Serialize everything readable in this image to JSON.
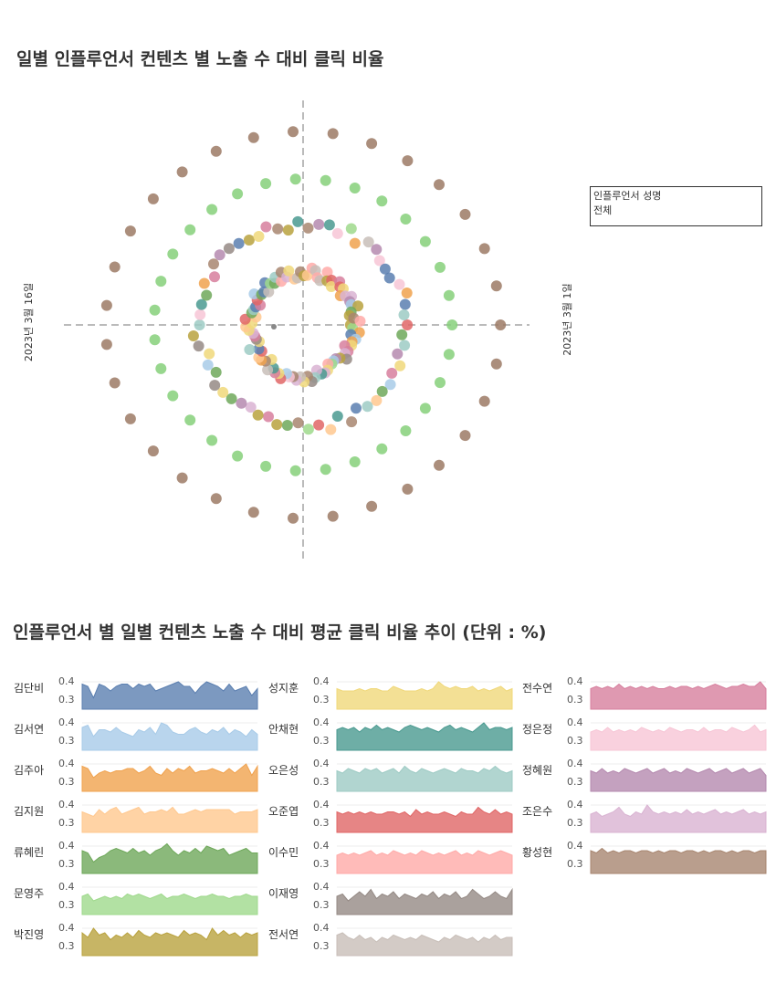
{
  "titles": {
    "radial": "일별 인플루언서 컨텐츠 별 노출 수 대비 클릭 비율",
    "trend": "인플루언서 별 일별 컨텐츠 노출 수 대비 평균 클릭 비율 추이 (단위 : %)"
  },
  "radial_labels": {
    "left": "2023년 3월 16일",
    "right": "2023년 3월 1일"
  },
  "filter": {
    "title": "인플루언서 성명",
    "value": "전체"
  },
  "chart_data": [
    {
      "type": "scatter",
      "title": "일별 인플루언서 컨텐츠 별 노출 수 대비 클릭 비율",
      "layout_kind": "radial",
      "axis_labels": [
        "2023년 3월 1일",
        "2023년 3월 16일"
      ],
      "rings": [
        {
          "label": "outer",
          "color": "#9c7a65",
          "count": 31
        },
        {
          "label": "second",
          "color": "#86d07a",
          "count": 31
        },
        {
          "label": "third",
          "color": "mixed",
          "count": 62
        },
        {
          "label": "inner",
          "color": "mixed",
          "count": 93
        }
      ]
    },
    {
      "type": "area",
      "title": "인플루언서 별 일별 컨텐츠 노출 수 대비 평균 클릭 비율 추이 (단위 : %)",
      "y_ticks": [
        "0.4",
        "0.3"
      ],
      "series": [
        {
          "name": "김단비",
          "color": "#5b7fb0",
          "values": [
            0.39,
            0.38,
            0.33,
            0.39,
            0.38,
            0.36,
            0.38,
            0.39,
            0.39,
            0.37,
            0.39,
            0.38,
            0.39,
            0.36,
            0.37,
            0.38,
            0.39,
            0.4,
            0.38,
            0.38,
            0.35,
            0.38,
            0.4,
            0.39,
            0.38,
            0.36,
            0.39,
            0.36,
            0.37,
            0.38,
            0.34,
            0.37
          ]
        },
        {
          "name": "김서연",
          "color": "#a8cbe8",
          "values": [
            0.38,
            0.39,
            0.34,
            0.37,
            0.37,
            0.36,
            0.38,
            0.36,
            0.35,
            0.34,
            0.37,
            0.36,
            0.38,
            0.35,
            0.4,
            0.39,
            0.36,
            0.35,
            0.35,
            0.37,
            0.38,
            0.36,
            0.35,
            0.37,
            0.36,
            0.38,
            0.35,
            0.37,
            0.36,
            0.34,
            0.37,
            0.35
          ]
        },
        {
          "name": "김주아",
          "color": "#f0a24e",
          "values": [
            0.39,
            0.38,
            0.34,
            0.36,
            0.37,
            0.36,
            0.37,
            0.37,
            0.38,
            0.38,
            0.36,
            0.37,
            0.39,
            0.36,
            0.35,
            0.38,
            0.36,
            0.38,
            0.37,
            0.39,
            0.36,
            0.37,
            0.37,
            0.38,
            0.37,
            0.36,
            0.38,
            0.36,
            0.38,
            0.4,
            0.35,
            0.39
          ]
        },
        {
          "name": "김지원",
          "color": "#ffc88f",
          "values": [
            0.37,
            0.36,
            0.35,
            0.38,
            0.36,
            0.38,
            0.39,
            0.36,
            0.37,
            0.38,
            0.39,
            0.36,
            0.37,
            0.37,
            0.38,
            0.37,
            0.39,
            0.36,
            0.36,
            0.37,
            0.38,
            0.37,
            0.38,
            0.38,
            0.38,
            0.38,
            0.38,
            0.36,
            0.37,
            0.37,
            0.37,
            0.38
          ]
        },
        {
          "name": "류혜린",
          "color": "#6ea85a",
          "values": [
            0.38,
            0.37,
            0.33,
            0.35,
            0.36,
            0.38,
            0.39,
            0.38,
            0.37,
            0.39,
            0.37,
            0.38,
            0.36,
            0.38,
            0.39,
            0.41,
            0.38,
            0.36,
            0.38,
            0.37,
            0.39,
            0.37,
            0.4,
            0.39,
            0.38,
            0.39,
            0.36,
            0.37,
            0.38,
            0.39,
            0.37,
            0.37
          ]
        },
        {
          "name": "문영주",
          "color": "#9fd98c",
          "values": [
            0.36,
            0.37,
            0.34,
            0.35,
            0.36,
            0.35,
            0.36,
            0.35,
            0.37,
            0.36,
            0.37,
            0.36,
            0.35,
            0.36,
            0.37,
            0.35,
            0.36,
            0.36,
            0.37,
            0.36,
            0.35,
            0.36,
            0.36,
            0.37,
            0.36,
            0.36,
            0.35,
            0.36,
            0.36,
            0.37,
            0.36,
            0.36
          ]
        },
        {
          "name": "박진영",
          "color": "#b9a23e",
          "values": [
            0.38,
            0.36,
            0.4,
            0.37,
            0.38,
            0.35,
            0.37,
            0.36,
            0.38,
            0.36,
            0.39,
            0.37,
            0.36,
            0.38,
            0.37,
            0.38,
            0.37,
            0.36,
            0.39,
            0.37,
            0.38,
            0.37,
            0.35,
            0.4,
            0.37,
            0.39,
            0.37,
            0.38,
            0.36,
            0.38,
            0.37,
            0.38
          ]
        },
        {
          "name": "성지훈",
          "color": "#f0d87a",
          "values": [
            0.37,
            0.36,
            0.36,
            0.36,
            0.37,
            0.36,
            0.37,
            0.37,
            0.36,
            0.36,
            0.38,
            0.37,
            0.36,
            0.36,
            0.36,
            0.37,
            0.36,
            0.37,
            0.4,
            0.38,
            0.37,
            0.38,
            0.37,
            0.37,
            0.38,
            0.36,
            0.37,
            0.36,
            0.37,
            0.38,
            0.36,
            0.37
          ]
        },
        {
          "name": "안채현",
          "color": "#4a9a90",
          "values": [
            0.37,
            0.38,
            0.37,
            0.38,
            0.36,
            0.38,
            0.37,
            0.39,
            0.37,
            0.38,
            0.37,
            0.36,
            0.38,
            0.39,
            0.38,
            0.37,
            0.38,
            0.37,
            0.36,
            0.38,
            0.39,
            0.37,
            0.38,
            0.37,
            0.36,
            0.38,
            0.4,
            0.37,
            0.38,
            0.38,
            0.37,
            0.38
          ]
        },
        {
          "name": "오은성",
          "color": "#9ecbc4",
          "values": [
            0.37,
            0.36,
            0.38,
            0.37,
            0.36,
            0.38,
            0.37,
            0.38,
            0.36,
            0.37,
            0.38,
            0.36,
            0.39,
            0.37,
            0.36,
            0.38,
            0.37,
            0.36,
            0.37,
            0.38,
            0.37,
            0.36,
            0.38,
            0.37,
            0.37,
            0.36,
            0.38,
            0.37,
            0.39,
            0.37,
            0.36,
            0.37
          ]
        },
        {
          "name": "오준엽",
          "color": "#e06666",
          "values": [
            0.37,
            0.36,
            0.37,
            0.36,
            0.37,
            0.36,
            0.37,
            0.36,
            0.36,
            0.37,
            0.37,
            0.36,
            0.37,
            0.35,
            0.38,
            0.36,
            0.37,
            0.36,
            0.36,
            0.37,
            0.36,
            0.35,
            0.37,
            0.36,
            0.36,
            0.39,
            0.37,
            0.36,
            0.38,
            0.36,
            0.37,
            0.36
          ]
        },
        {
          "name": "이수민",
          "color": "#ffaaa8",
          "values": [
            0.36,
            0.37,
            0.36,
            0.37,
            0.36,
            0.37,
            0.38,
            0.36,
            0.37,
            0.36,
            0.38,
            0.37,
            0.36,
            0.37,
            0.36,
            0.38,
            0.37,
            0.36,
            0.37,
            0.36,
            0.37,
            0.38,
            0.36,
            0.37,
            0.36,
            0.38,
            0.37,
            0.36,
            0.37,
            0.38,
            0.37,
            0.36
          ]
        },
        {
          "name": "이재영",
          "color": "#958a85",
          "values": [
            0.36,
            0.37,
            0.34,
            0.36,
            0.38,
            0.36,
            0.39,
            0.35,
            0.37,
            0.36,
            0.38,
            0.35,
            0.37,
            0.36,
            0.35,
            0.37,
            0.36,
            0.38,
            0.35,
            0.37,
            0.36,
            0.38,
            0.35,
            0.36,
            0.39,
            0.37,
            0.35,
            0.36,
            0.38,
            0.36,
            0.35,
            0.39
          ]
        },
        {
          "name": "전서연",
          "color": "#c8beb8",
          "values": [
            0.37,
            0.38,
            0.36,
            0.35,
            0.37,
            0.35,
            0.36,
            0.34,
            0.36,
            0.35,
            0.37,
            0.36,
            0.35,
            0.36,
            0.35,
            0.37,
            0.36,
            0.35,
            0.34,
            0.36,
            0.35,
            0.37,
            0.36,
            0.35,
            0.36,
            0.34,
            0.36,
            0.35,
            0.37,
            0.35,
            0.36,
            0.36
          ]
        },
        {
          "name": "전수연",
          "color": "#d77f9e",
          "values": [
            0.37,
            0.38,
            0.37,
            0.38,
            0.37,
            0.39,
            0.37,
            0.38,
            0.37,
            0.38,
            0.37,
            0.38,
            0.37,
            0.37,
            0.38,
            0.37,
            0.38,
            0.38,
            0.37,
            0.38,
            0.37,
            0.38,
            0.39,
            0.38,
            0.37,
            0.38,
            0.38,
            0.39,
            0.38,
            0.38,
            0.4,
            0.37
          ]
        },
        {
          "name": "정은정",
          "color": "#f7c6d6",
          "values": [
            0.36,
            0.37,
            0.36,
            0.38,
            0.36,
            0.37,
            0.36,
            0.37,
            0.36,
            0.38,
            0.37,
            0.36,
            0.37,
            0.36,
            0.38,
            0.37,
            0.36,
            0.37,
            0.37,
            0.36,
            0.38,
            0.36,
            0.37,
            0.37,
            0.36,
            0.38,
            0.37,
            0.36,
            0.37,
            0.39,
            0.36,
            0.37
          ]
        },
        {
          "name": "정혜원",
          "color": "#b58aaf",
          "values": [
            0.37,
            0.36,
            0.38,
            0.36,
            0.37,
            0.36,
            0.38,
            0.37,
            0.36,
            0.37,
            0.38,
            0.36,
            0.37,
            0.38,
            0.36,
            0.37,
            0.36,
            0.38,
            0.37,
            0.36,
            0.37,
            0.38,
            0.36,
            0.37,
            0.38,
            0.36,
            0.37,
            0.38,
            0.36,
            0.37,
            0.38,
            0.35
          ]
        },
        {
          "name": "조은수",
          "color": "#d9b3d2",
          "values": [
            0.36,
            0.37,
            0.35,
            0.36,
            0.37,
            0.39,
            0.36,
            0.35,
            0.37,
            0.36,
            0.4,
            0.37,
            0.36,
            0.37,
            0.36,
            0.37,
            0.36,
            0.38,
            0.36,
            0.37,
            0.36,
            0.37,
            0.38,
            0.36,
            0.37,
            0.36,
            0.37,
            0.38,
            0.36,
            0.37,
            0.36,
            0.37
          ]
        },
        {
          "name": "황성현",
          "color": "#a88670",
          "values": [
            0.38,
            0.37,
            0.39,
            0.37,
            0.38,
            0.37,
            0.38,
            0.38,
            0.37,
            0.38,
            0.38,
            0.37,
            0.38,
            0.37,
            0.38,
            0.38,
            0.37,
            0.38,
            0.38,
            0.37,
            0.38,
            0.37,
            0.38,
            0.38,
            0.37,
            0.38,
            0.37,
            0.38,
            0.38,
            0.37,
            0.38,
            0.38
          ]
        }
      ]
    }
  ]
}
